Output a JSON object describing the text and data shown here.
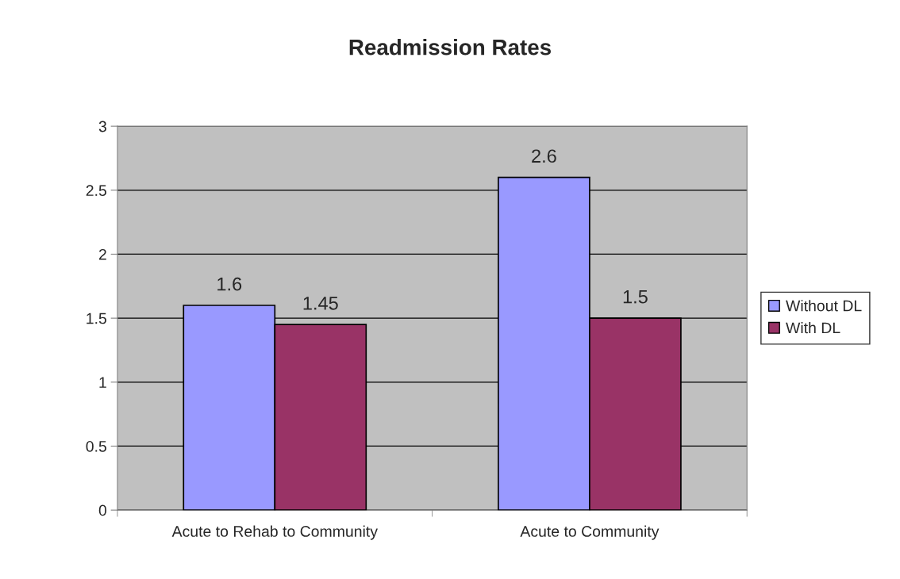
{
  "chart_data": {
    "type": "bar",
    "title": "Readmission Rates",
    "categories": [
      "Acute to Rehab to Community",
      "Acute to Community"
    ],
    "series": [
      {
        "name": "Without DL",
        "color": "#9999ff",
        "values": [
          1.6,
          2.6
        ]
      },
      {
        "name": "With DL",
        "color": "#993366",
        "values": [
          1.45,
          1.5
        ]
      }
    ],
    "ylim": [
      0,
      3
    ],
    "yticks": [
      0,
      0.5,
      1,
      1.5,
      2,
      2.5,
      3
    ],
    "grid": "y",
    "legend": "right",
    "data_labels": true
  }
}
